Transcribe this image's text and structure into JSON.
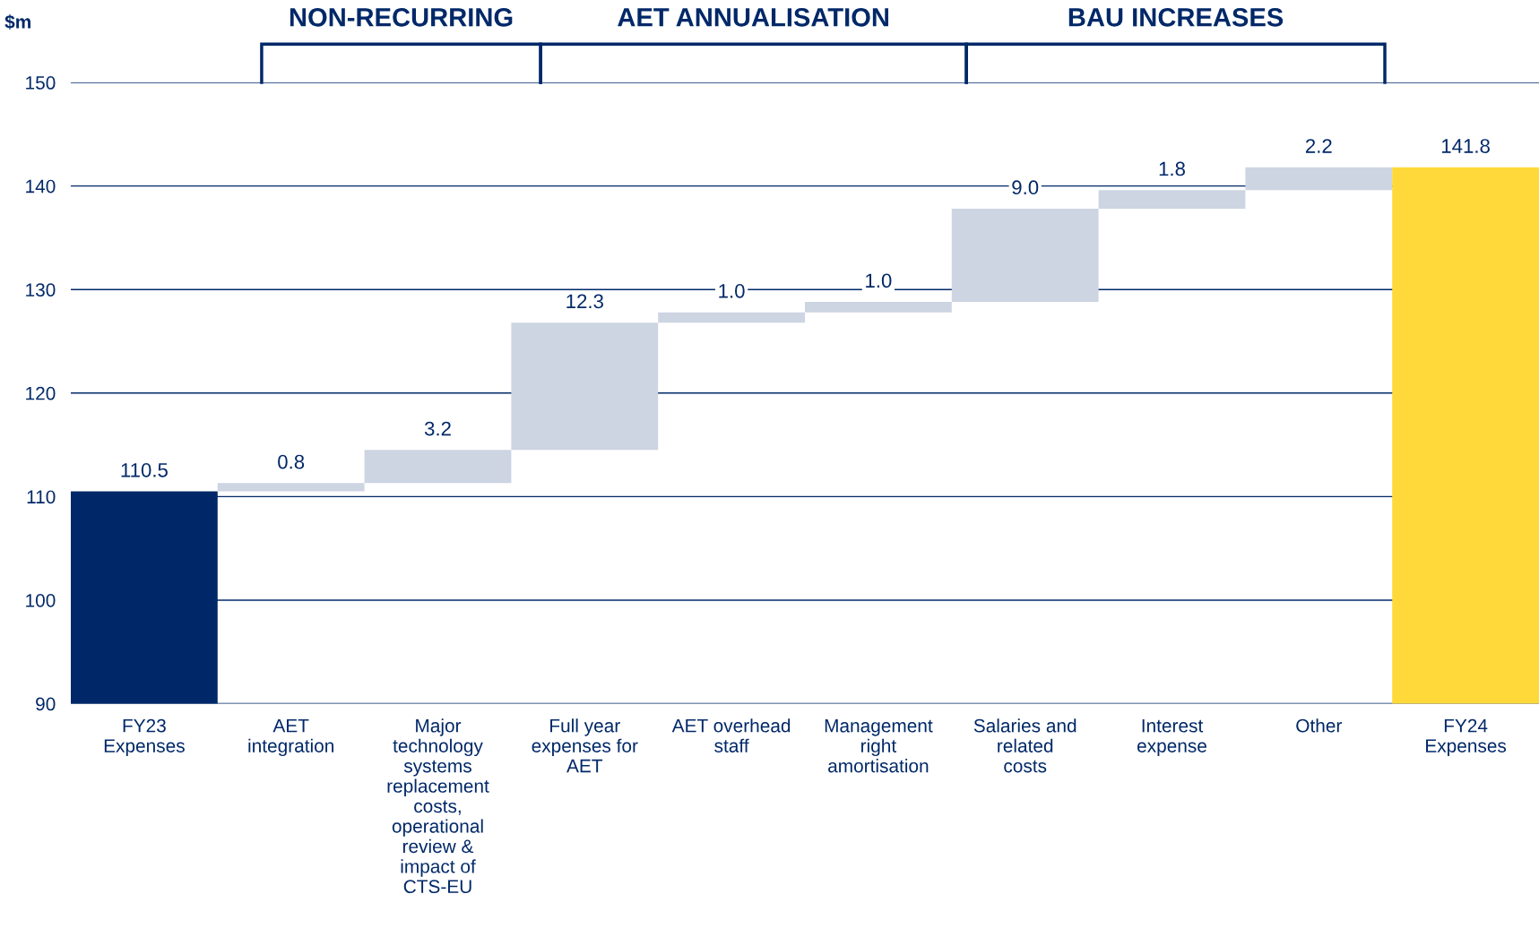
{
  "chart_data": {
    "type": "bar",
    "ylabel": "$m",
    "categories": [
      "FY23 Expenses",
      "AET integration",
      "Major technology systems replacement costs, operational review & impact of CTS-EU",
      "Full year expenses for AET",
      "AET overhead staff",
      "Management right amortisation",
      "Salaries and related costs",
      "Interest expense",
      "Other",
      "FY24 Expenses"
    ],
    "values": [
      110.5,
      0.8,
      3.2,
      12.3,
      1.0,
      1.0,
      9.0,
      1.8,
      2.2,
      141.8
    ],
    "base": [
      null,
      110.5,
      111.3,
      114.5,
      126.8,
      127.8,
      128.8,
      137.8,
      139.6,
      null
    ],
    "colors": [
      "#002868",
      "#cdd4e2",
      "#cdd4e2",
      "#cdd4e2",
      "#cdd4e2",
      "#cdd4e2",
      "#cdd4e2",
      "#cdd4e2",
      "#cdd4e2",
      "#ffd93a"
    ],
    "ylim": [
      90,
      150
    ],
    "yticks": [
      90,
      100,
      110,
      120,
      130,
      140,
      150
    ],
    "grid": "y",
    "value_labels": [
      "110.5",
      "0.8",
      "3.2",
      "12.3",
      "1.0",
      "1.0",
      "9.0",
      "1.8",
      "2.2",
      "141.8"
    ],
    "annotations": [
      "NON-RECURRING",
      "AET ANNUALISATION",
      "BAU INCREASES"
    ]
  }
}
